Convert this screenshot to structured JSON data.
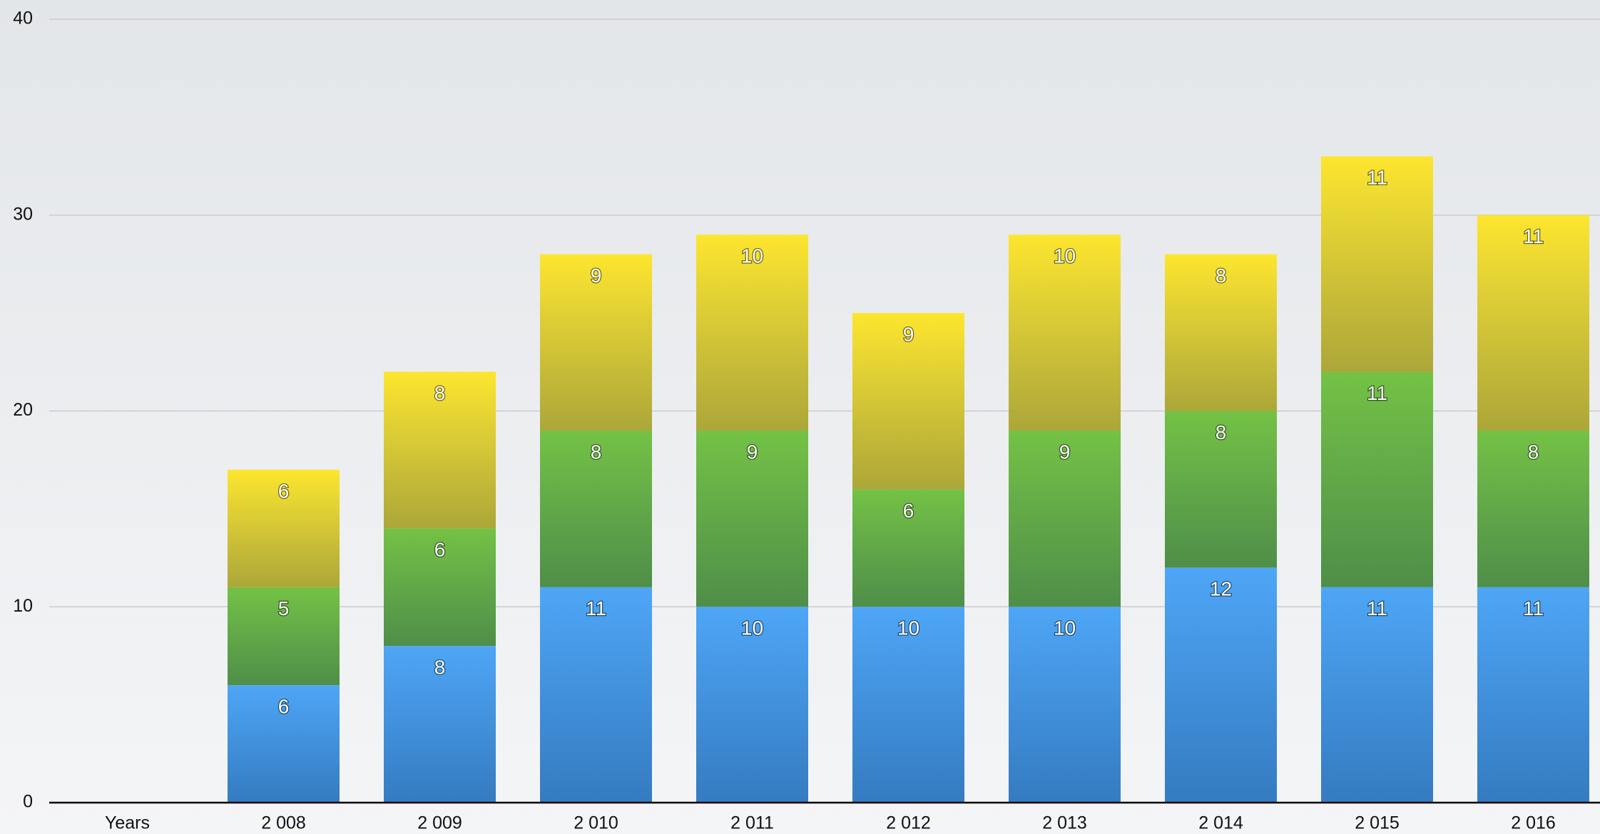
{
  "chart_data": {
    "type": "stacked_bar",
    "categories": [
      "Years",
      "2 008",
      "2 009",
      "2 010",
      "2 011",
      "2 012",
      "2 013",
      "2 014",
      "2 015",
      "2 016"
    ],
    "series": [
      {
        "color": "#4ea6f6",
        "values": [
          null,
          6,
          8,
          11,
          10,
          10,
          10,
          12,
          11,
          11
        ]
      },
      {
        "color": "#74c245",
        "values": [
          null,
          5,
          6,
          8,
          9,
          6,
          9,
          8,
          11,
          8
        ]
      },
      {
        "color": "#fde62e",
        "values": [
          null,
          6,
          8,
          9,
          10,
          9,
          10,
          8,
          11,
          11
        ]
      }
    ],
    "ylim": [
      0,
      40
    ],
    "yticks": [
      0,
      10,
      20,
      30,
      40
    ],
    "grid": true
  }
}
